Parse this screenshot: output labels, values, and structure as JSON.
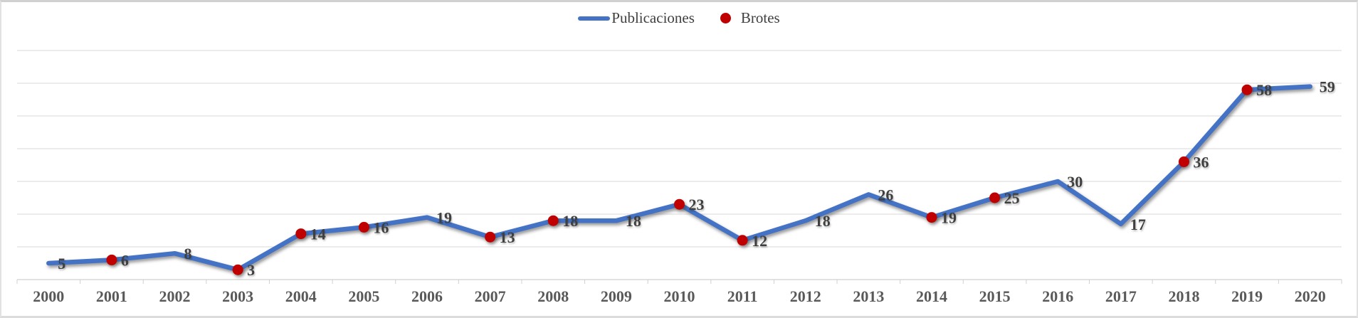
{
  "chart": {
    "legend": [
      {
        "label": "Publicaciones",
        "swatch": "line-swatch-icon",
        "color": "#4472C4"
      },
      {
        "label": "Brotes",
        "swatch": "dot-swatch-icon",
        "color": "#C00000"
      }
    ],
    "colors": {
      "line": "#4472C4",
      "dot": "#C00000",
      "gridline": "#D9D9D9",
      "data_label": "#3F3F3F",
      "axis_label": "#595959"
    }
  },
  "chart_data": {
    "type": "line",
    "title": "",
    "categories": [
      "2000",
      "2001",
      "2002",
      "2003",
      "2004",
      "2005",
      "2006",
      "2007",
      "2008",
      "2009",
      "2010",
      "2011",
      "2012",
      "2013",
      "2014",
      "2015",
      "2016",
      "2017",
      "2018",
      "2019",
      "2020"
    ],
    "series": [
      {
        "name": "Publicaciones",
        "type": "line",
        "color": "#4472C4",
        "values": [
          5,
          6,
          8,
          3,
          14,
          16,
          19,
          13,
          18,
          18,
          23,
          12,
          18,
          26,
          19,
          25,
          30,
          17,
          36,
          58,
          59
        ],
        "data_labels_shown": true
      },
      {
        "name": "Brotes",
        "type": "scatter",
        "color": "#C00000",
        "values": [
          null,
          6,
          null,
          3,
          14,
          16,
          null,
          13,
          18,
          null,
          23,
          12,
          null,
          null,
          19,
          25,
          null,
          null,
          36,
          58,
          null
        ]
      }
    ],
    "data_labels": [
      5,
      6,
      8,
      3,
      14,
      16,
      19,
      13,
      18,
      18,
      23,
      12,
      18,
      26,
      19,
      25,
      30,
      17,
      36,
      58,
      59
    ],
    "ylim": [
      0,
      75
    ],
    "gridlines": {
      "visible": true,
      "step": 10,
      "max": 70
    },
    "legend_position": "top-center",
    "x_axis": {
      "tick_style": "between-categories",
      "labels_shown": true
    },
    "y_axis": {
      "labels_shown": false
    }
  }
}
